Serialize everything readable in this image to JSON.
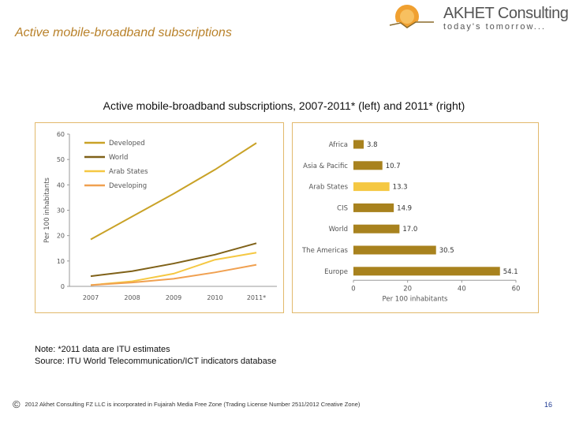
{
  "slide": {
    "title": "Active mobile-broadband subscriptions",
    "caption": "Active mobile-broadband subscriptions, 2007-2011* (left) and 2011* (right)",
    "note": "Note: *2011 data are ITU estimates",
    "source": "Source: ITU World Telecommunication/ICT indicators database",
    "footer": "2012 Akhet Consulting FZ LLC is incorporated in Fujairah Media Free Zone (Trading License Number 2511/2012 Creative Zone)",
    "copyright_symbol": "©",
    "page_number": "16"
  },
  "logo": {
    "name": "AKHET Consulting",
    "tagline": "today's tomorrow..."
  },
  "colors": {
    "title": "#b9822b",
    "developed": "#c9a227",
    "world": "#7f6118",
    "arab_states": "#f5c842",
    "developing": "#f0a050",
    "bar": "#a8821e",
    "bar_highlight": "#f5c842",
    "panel_border": "#e2b96c"
  },
  "chart_data": [
    {
      "type": "line",
      "categories": [
        "2007",
        "2008",
        "2009",
        "2010",
        "2011*"
      ],
      "ylabel": "Per 100 inhabitants",
      "ylim": [
        0,
        60
      ],
      "yticks": [
        0,
        10,
        20,
        30,
        40,
        50,
        60
      ],
      "legend_position": "top-left",
      "series": [
        {
          "name": "Developed",
          "color": "#c9a227",
          "values": [
            18.5,
            27.5,
            36.5,
            46,
            56.5
          ]
        },
        {
          "name": "World",
          "color": "#7f6118",
          "values": [
            4,
            6,
            9,
            12.5,
            17
          ]
        },
        {
          "name": "Arab States",
          "color": "#f5c842",
          "values": [
            0.5,
            2,
            5,
            10.5,
            13.3
          ]
        },
        {
          "name": "Developing",
          "color": "#f0a050",
          "values": [
            0.5,
            1.5,
            3,
            5.5,
            8.5
          ]
        }
      ]
    },
    {
      "type": "bar",
      "orientation": "horizontal",
      "categories": [
        "Africa",
        "Asia & Pacific",
        "Arab States",
        "CIS",
        "World",
        "The Americas",
        "Europe"
      ],
      "values": [
        3.8,
        10.7,
        13.3,
        14.9,
        17.0,
        30.5,
        54.1
      ],
      "value_labels": [
        "3.8",
        "10.7",
        "13.3",
        "14.9",
        "17.0",
        "30.5",
        "54.1"
      ],
      "highlight": "Arab States",
      "xlabel": "Per 100 inhabitants",
      "xlim": [
        0,
        60
      ],
      "xticks": [
        0,
        20,
        40,
        60
      ]
    }
  ]
}
